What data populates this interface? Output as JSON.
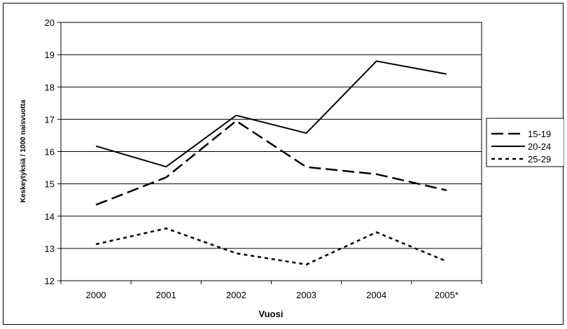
{
  "chart_data": {
    "type": "line",
    "title": "",
    "xlabel": "Vuosi",
    "ylabel": "Keskeytyksiä / 1000 naisvuotta",
    "categories": [
      "2000",
      "2001",
      "2002",
      "2003",
      "2004",
      "2005*"
    ],
    "ylim": [
      12,
      20
    ],
    "yticks": [
      "12",
      "13",
      "14",
      "15",
      "16",
      "17",
      "18",
      "19",
      "20"
    ],
    "grid": true,
    "legend_position": "right",
    "series": [
      {
        "name": "15-19",
        "values": [
          14.35,
          15.2,
          16.95,
          15.52,
          15.3,
          14.8
        ],
        "dash": "long-dash"
      },
      {
        "name": "20-24",
        "values": [
          16.17,
          15.53,
          17.12,
          16.57,
          18.8,
          18.4
        ],
        "dash": "solid"
      },
      {
        "name": "25-29",
        "values": [
          13.13,
          13.62,
          12.85,
          12.5,
          13.5,
          12.6
        ],
        "dash": "short-dash"
      }
    ]
  }
}
